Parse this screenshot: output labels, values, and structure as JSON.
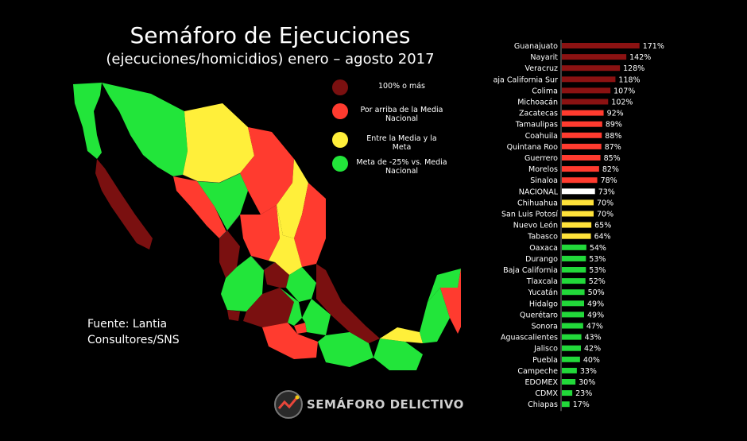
{
  "title": "Semáforo de Ejecuciones",
  "subtitle": "(ejecuciones/homicidios) enero – agosto 2017",
  "legend": [
    {
      "label": "100% o más",
      "color": "#7a1010"
    },
    {
      "label": "Por arriba de la Media Nacional",
      "color": "#ff3b2f"
    },
    {
      "label": "Entre la Media y la Meta",
      "color": "#ffef3a"
    },
    {
      "label": "Meta de -25% vs. Media Nacional",
      "color": "#22e53a"
    }
  ],
  "source_line1": "Fuente: Lantia",
  "source_line2": "Consultores/SNS",
  "logo_text": "SEMÁFORO DELICTIVO",
  "chart_data": {
    "type": "bar",
    "orientation": "horizontal",
    "categories": [
      "Guanajuato",
      "Nayarit",
      "Veracruz",
      "Baja California Sur",
      "Colima",
      "Michoacán",
      "Zacatecas",
      "Tamaulipas",
      "Coahuila",
      "Quintana Roo",
      "Guerrero",
      "Morelos",
      "Sinaloa",
      "NACIONAL",
      "Chihuahua",
      "San Luis Potosí",
      "Nuevo León",
      "Tabasco",
      "Oaxaca",
      "Durango",
      "Baja California",
      "Tlaxcala",
      "Yucatán",
      "Hidalgo",
      "Querétaro",
      "Sonora",
      "Aguascalientes",
      "Jalisco",
      "Puebla",
      "Campeche",
      "EDOMEX",
      "CDMX",
      "Chiapas"
    ],
    "values": [
      171,
      142,
      128,
      118,
      107,
      102,
      92,
      89,
      88,
      87,
      85,
      82,
      78,
      73,
      70,
      70,
      65,
      64,
      54,
      53,
      53,
      52,
      50,
      49,
      49,
      47,
      43,
      42,
      40,
      33,
      30,
      23,
      17
    ],
    "value_labels": [
      "171%",
      "142%",
      "128%",
      "118%",
      "107%",
      "102%",
      "92%",
      "89%",
      "88%",
      "87%",
      "85%",
      "82%",
      "78%",
      "73%",
      "70%",
      "70%",
      "65%",
      "64%",
      "54%",
      "53%",
      "53%",
      "52%",
      "50%",
      "49%",
      "49%",
      "47%",
      "43%",
      "42%",
      "40%",
      "33%",
      "30%",
      "23%",
      "17%"
    ],
    "colors": [
      "#8b1212",
      "#8b1212",
      "#8b1212",
      "#8b1212",
      "#8b1212",
      "#8b1212",
      "#ff3b2f",
      "#ff3b2f",
      "#ff3b2f",
      "#ff3b2f",
      "#ff3b2f",
      "#ff3b2f",
      "#ff3b2f",
      "#ffffff",
      "#ffe23a",
      "#ffe23a",
      "#ffe23a",
      "#ffe23a",
      "#22d83a",
      "#22d83a",
      "#22d83a",
      "#22d83a",
      "#22d83a",
      "#22d83a",
      "#22d83a",
      "#22d83a",
      "#22d83a",
      "#22d83a",
      "#22d83a",
      "#22d83a",
      "#22d83a",
      "#22d83a",
      "#22d83a"
    ],
    "xlim": [
      0,
      175
    ]
  }
}
